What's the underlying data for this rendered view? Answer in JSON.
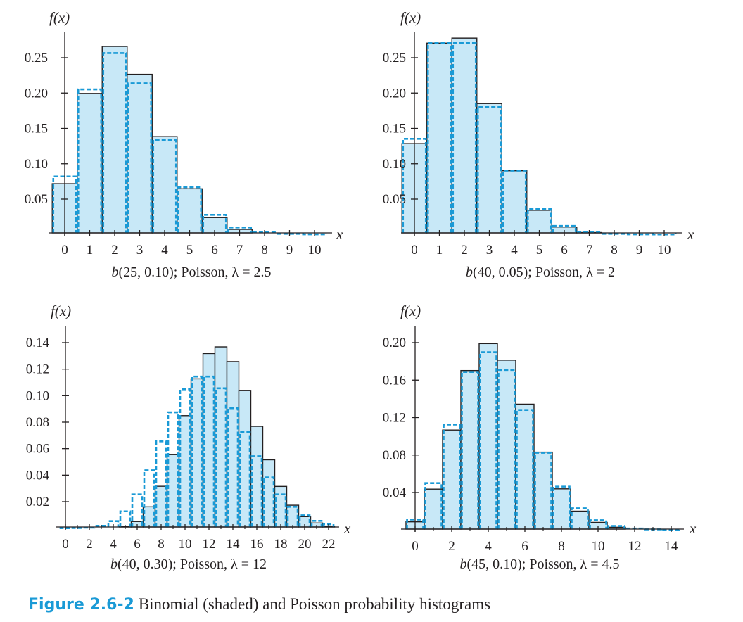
{
  "colors": {
    "binomial_fill": "#c8e8f7",
    "binomial_stroke": "#231f20",
    "poisson_stroke": "#1a9ad6",
    "axis": "#231f20"
  },
  "figure_caption": {
    "number": "Figure 2.6-2",
    "text": "Binomial (shaded) and Poisson probability histograms"
  },
  "chart_data": [
    {
      "type": "bar",
      "title": "",
      "ylabel": "f(x)",
      "xlabel": "x",
      "caption_parts": [
        "b",
        "(25, 0.10); Poisson, λ = 2.5"
      ],
      "xlim": [
        -0.5,
        10.5
      ],
      "ylim": [
        0,
        0.3
      ],
      "x_ticks": [
        0,
        1,
        2,
        3,
        4,
        5,
        6,
        7,
        8,
        9,
        10
      ],
      "x_tick_labels": [
        "0",
        "1",
        "2",
        "3",
        "4",
        "5",
        "6",
        "7",
        "8",
        "9",
        "10"
      ],
      "y_ticks": [
        0.05,
        0.1,
        0.15,
        0.2,
        0.25
      ],
      "y_tick_labels": [
        "0.05",
        "0.10",
        "0.15",
        "0.20",
        "0.25"
      ],
      "series": [
        {
          "name": "Binomial b(25, 0.10)",
          "style": "shaded",
          "x": [
            0,
            1,
            2,
            3,
            4,
            5,
            6,
            7,
            8,
            9,
            10
          ],
          "values": [
            0.0718,
            0.1994,
            0.2659,
            0.2265,
            0.1384,
            0.0646,
            0.0239,
            0.0072,
            0.0018,
            0.0004,
            0.0001
          ]
        },
        {
          "name": "Poisson λ = 2.5",
          "style": "dashed",
          "x": [
            0,
            1,
            2,
            3,
            4,
            5,
            6,
            7,
            8,
            9,
            10
          ],
          "values": [
            0.0821,
            0.2052,
            0.2565,
            0.2138,
            0.1336,
            0.0668,
            0.0278,
            0.0099,
            0.0031,
            0.0009,
            0.0002
          ]
        }
      ]
    },
    {
      "type": "bar",
      "title": "",
      "ylabel": "f(x)",
      "xlabel": "x",
      "caption_parts": [
        "b",
        "(40, 0.05); Poisson, λ = 2"
      ],
      "xlim": [
        -0.5,
        10.5
      ],
      "ylim": [
        0,
        0.3
      ],
      "x_ticks": [
        0,
        1,
        2,
        3,
        4,
        5,
        6,
        7,
        8,
        9,
        10
      ],
      "x_tick_labels": [
        "0",
        "1",
        "2",
        "3",
        "4",
        "5",
        "6",
        "7",
        "8",
        "9",
        "10"
      ],
      "y_ticks": [
        0.05,
        0.1,
        0.15,
        0.2,
        0.25
      ],
      "y_tick_labels": [
        "0.05",
        "0.10",
        "0.15",
        "0.20",
        "0.25"
      ],
      "series": [
        {
          "name": "Binomial b(40, 0.05)",
          "style": "shaded",
          "x": [
            0,
            1,
            2,
            3,
            4,
            5,
            6,
            7,
            8,
            9,
            10
          ],
          "values": [
            0.1285,
            0.2706,
            0.2777,
            0.1851,
            0.0901,
            0.0342,
            0.0105,
            0.0027,
            0.0006,
            0.0001,
            0.0
          ]
        },
        {
          "name": "Poisson λ = 2",
          "style": "dashed",
          "x": [
            0,
            1,
            2,
            3,
            4,
            5,
            6,
            7,
            8,
            9,
            10
          ],
          "values": [
            0.1353,
            0.2707,
            0.2707,
            0.1804,
            0.0902,
            0.0361,
            0.012,
            0.0034,
            0.0009,
            0.0002,
            0.0
          ]
        }
      ]
    },
    {
      "type": "bar",
      "title": "",
      "ylabel": "f(x)",
      "xlabel": "x",
      "caption_parts": [
        "b",
        "(40, 0.30); Poisson, λ = 12"
      ],
      "xlim": [
        -0.5,
        23
      ],
      "ylim": [
        0,
        0.15
      ],
      "x_ticks": [
        0,
        2,
        4,
        6,
        8,
        10,
        12,
        14,
        16,
        18,
        20,
        22
      ],
      "x_tick_labels": [
        "0",
        "2",
        "4",
        "6",
        "8",
        "10",
        "12",
        "14",
        "16",
        "18",
        "20",
        "22"
      ],
      "minor_x_ticks": [
        1,
        3,
        5,
        7,
        9,
        11,
        13,
        15,
        17,
        19,
        21
      ],
      "y_ticks": [
        0.02,
        0.04,
        0.06,
        0.08,
        0.1,
        0.12,
        0.14
      ],
      "y_tick_labels": [
        "0.02",
        "0.04",
        "0.06",
        "0.08",
        "0.10",
        "0.12",
        "0.14"
      ],
      "series": [
        {
          "name": "Binomial b(40, 0.30)",
          "style": "shaded",
          "x": [
            0,
            1,
            2,
            3,
            4,
            5,
            6,
            7,
            8,
            9,
            10,
            11,
            12,
            13,
            14,
            15,
            16,
            17,
            18,
            19,
            20,
            21,
            22
          ],
          "values": [
            0.0,
            0.0,
            0.0,
            0.0001,
            0.0004,
            0.0015,
            0.005,
            0.0161,
            0.0316,
            0.0557,
            0.0849,
            0.1127,
            0.1318,
            0.1368,
            0.1257,
            0.104,
            0.0768,
            0.0516,
            0.0315,
            0.0173,
            0.0087,
            0.0039,
            0.0016
          ]
        },
        {
          "name": "Poisson λ = 12",
          "style": "dashed",
          "x": [
            0,
            1,
            2,
            3,
            4,
            5,
            6,
            7,
            8,
            9,
            10,
            11,
            12,
            13,
            14,
            15,
            16,
            17,
            18,
            19,
            20,
            21,
            22
          ],
          "values": [
            0.0,
            0.0001,
            0.0004,
            0.0018,
            0.0053,
            0.0127,
            0.0255,
            0.0437,
            0.0655,
            0.0874,
            0.1048,
            0.1144,
            0.1144,
            0.1056,
            0.0905,
            0.0724,
            0.0543,
            0.0383,
            0.0255,
            0.0161,
            0.0097,
            0.0055,
            0.003
          ]
        }
      ]
    },
    {
      "type": "bar",
      "title": "",
      "ylabel": "f(x)",
      "xlabel": "x",
      "caption_parts": [
        "b",
        "(45, 0.10); Poisson, λ = 4.5"
      ],
      "xlim": [
        -0.5,
        15
      ],
      "ylim": [
        0,
        0.21
      ],
      "x_ticks": [
        0,
        2,
        4,
        6,
        8,
        10,
        12,
        14
      ],
      "x_tick_labels": [
        "0",
        "2",
        "4",
        "6",
        "8",
        "10",
        "12",
        "14"
      ],
      "minor_x_ticks": [
        1,
        3,
        5,
        7,
        9,
        11,
        13
      ],
      "y_ticks": [
        0.04,
        0.08,
        0.12,
        0.16,
        0.2
      ],
      "y_tick_labels": [
        "0.04",
        "0.08",
        "0.12",
        "0.16",
        "0.20"
      ],
      "series": [
        {
          "name": "Binomial b(45, 0.10)",
          "style": "shaded",
          "x": [
            0,
            1,
            2,
            3,
            4,
            5,
            6,
            7,
            8,
            9,
            10,
            11,
            12,
            13,
            14
          ],
          "values": [
            0.0087,
            0.0436,
            0.1067,
            0.1702,
            0.199,
            0.1813,
            0.1343,
            0.0831,
            0.0439,
            0.0201,
            0.0081,
            0.0029,
            0.0009,
            0.0003,
            0.0001
          ]
        },
        {
          "name": "Poisson λ = 4.5",
          "style": "dashed",
          "x": [
            0,
            1,
            2,
            3,
            4,
            5,
            6,
            7,
            8,
            9,
            10,
            11,
            12,
            13,
            14
          ],
          "values": [
            0.0111,
            0.05,
            0.1125,
            0.1687,
            0.1898,
            0.1708,
            0.1281,
            0.0824,
            0.0463,
            0.0232,
            0.0104,
            0.0043,
            0.0016,
            0.0006,
            0.0002
          ]
        }
      ]
    }
  ]
}
